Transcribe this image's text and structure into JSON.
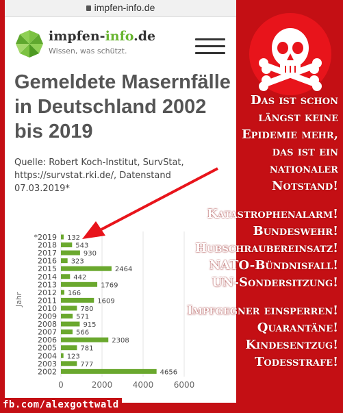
{
  "browser": {
    "url": "impfen-info.de"
  },
  "site": {
    "brand_main": "impfen-",
    "brand_accent": "info",
    "brand_tld": ".de",
    "tagline": "Wissen, was schützt."
  },
  "article": {
    "title": "Gemeldete Masernfälle in Deutschland 2002 bis 2019",
    "source": "Quelle: Robert Koch-Institut, SurvStat, https://survstat.rki.de/, Datenstand 07.03.2019*"
  },
  "chart_data": {
    "type": "bar",
    "orientation": "horizontal",
    "ylabel": "Jahr",
    "categories": [
      "*2019",
      "2018",
      "2017",
      "2016",
      "2015",
      "2014",
      "2013",
      "2012",
      "2011",
      "2010",
      "2009",
      "2008",
      "2007",
      "2006",
      "2005",
      "2004",
      "2003",
      "2002"
    ],
    "values": [
      132,
      543,
      930,
      323,
      2464,
      442,
      1769,
      166,
      1609,
      780,
      571,
      915,
      566,
      2308,
      781,
      123,
      777,
      4656
    ],
    "xlim": [
      0,
      6000
    ],
    "xticks": [
      "0",
      "2000",
      "4000",
      "6000"
    ],
    "grid": true,
    "bar_color": "#6aa82e"
  },
  "overlay": {
    "slogans_group1": [
      "Das ist schon",
      "längst keine",
      "Epidemie mehr,",
      "das ist ein",
      "nationaler",
      "Notstand!"
    ],
    "slogans_group2": [
      "Katastrophenalarm!",
      "Bundeswehr!",
      "Hubschraubereinsatz!",
      "NATO-Bündnisfall!",
      "UN-Sondersitzung!"
    ],
    "slogans_group3": [
      "Impfgegner einsperren!",
      "Quarantäne!",
      "Kindesentzug!",
      "Todesstrafe!"
    ],
    "caption": "fb.com/alexgottwald",
    "badge_icon": "skull-crossbones-icon",
    "accent_color": "#c40f14"
  }
}
